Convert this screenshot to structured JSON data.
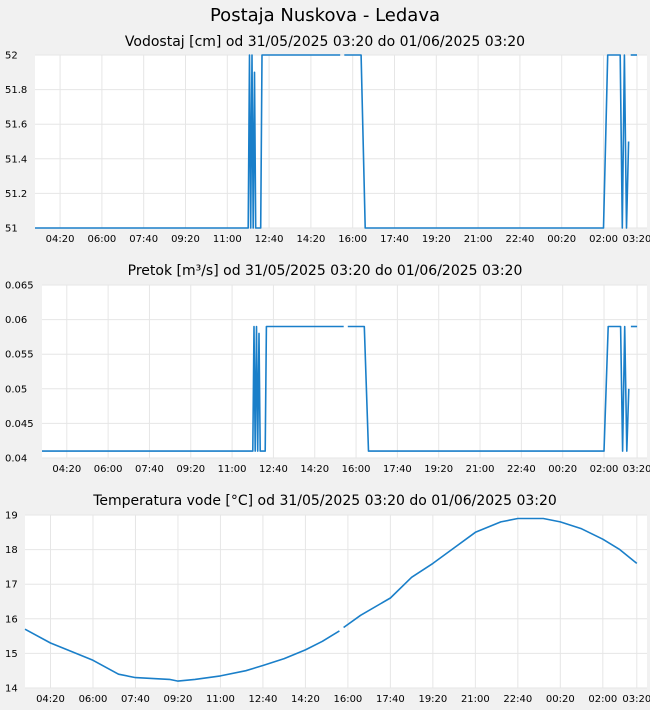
{
  "page_title": "Postaja Nuskova - Ledava",
  "colors": {
    "series": "#1a7fc9",
    "grid": "#e6e6e6",
    "plot_bg": "#ffffff",
    "page_bg": "#f1f1f1"
  },
  "chart_data": [
    {
      "type": "line",
      "title": "Vodostaj [cm] od 31/05/2025 03:20 do 01/06/2025 03:20",
      "xlabel": "",
      "ylabel": "",
      "x_ticks": [
        "04:20",
        "06:00",
        "07:40",
        "09:20",
        "11:00",
        "12:40",
        "14:20",
        "16:00",
        "17:40",
        "19:20",
        "21:00",
        "22:40",
        "00:20",
        "02:00",
        "03:20"
      ],
      "y_ticks": [
        "51",
        "51.2",
        "51.4",
        "51.6",
        "51.8",
        "52"
      ],
      "ylim": [
        51,
        52
      ],
      "grid": true,
      "series": [
        {
          "values": [
            [
              "31/05/2025 03:20",
              51
            ],
            [
              "31/05/2025 11:50",
              51
            ],
            [
              "31/05/2025 11:53",
              52
            ],
            [
              "31/05/2025 11:56",
              51
            ],
            [
              "31/05/2025 11:59",
              52
            ],
            [
              "31/05/2025 12:02",
              51
            ],
            [
              "31/05/2025 12:05",
              51.9
            ],
            [
              "31/05/2025 12:08",
              51
            ],
            [
              "31/05/2025 12:20",
              51
            ],
            [
              "31/05/2025 12:23",
              52
            ],
            [
              "31/05/2025 15:30",
              52
            ],
            null,
            [
              "31/05/2025 15:40",
              52
            ],
            [
              "31/05/2025 16:20",
              52
            ],
            [
              "31/05/2025 16:30",
              51
            ],
            [
              "01/06/2025 02:00",
              51
            ],
            [
              "01/06/2025 02:10",
              52
            ],
            [
              "01/06/2025 02:40",
              52
            ],
            [
              "01/06/2025 02:45",
              51
            ],
            [
              "01/06/2025 02:50",
              52
            ],
            [
              "01/06/2025 02:55",
              51
            ],
            [
              "01/06/2025 03:00",
              51.5
            ],
            null,
            [
              "01/06/2025 03:05",
              52
            ],
            [
              "01/06/2025 03:20",
              52
            ]
          ]
        }
      ]
    },
    {
      "type": "line",
      "title": "Pretok [m³/s] od 31/05/2025 03:20 do 01/06/2025 03:20",
      "xlabel": "",
      "ylabel": "",
      "x_ticks": [
        "04:20",
        "06:00",
        "07:40",
        "09:20",
        "11:00",
        "12:40",
        "14:20",
        "16:00",
        "17:40",
        "19:20",
        "21:00",
        "22:40",
        "00:20",
        "02:00",
        "03:20"
      ],
      "y_ticks": [
        "0.04",
        "0.045",
        "0.05",
        "0.055",
        "0.06",
        "0.065"
      ],
      "ylim": [
        0.04,
        0.065
      ],
      "grid": true,
      "series": [
        {
          "values": [
            [
              "31/05/2025 03:20",
              0.041
            ],
            [
              "31/05/2025 11:50",
              0.041
            ],
            [
              "31/05/2025 11:53",
              0.059
            ],
            [
              "31/05/2025 11:56",
              0.041
            ],
            [
              "31/05/2025 11:59",
              0.059
            ],
            [
              "31/05/2025 12:02",
              0.041
            ],
            [
              "31/05/2025 12:05",
              0.058
            ],
            [
              "31/05/2025 12:08",
              0.041
            ],
            [
              "31/05/2025 12:20",
              0.041
            ],
            [
              "31/05/2025 12:23",
              0.059
            ],
            [
              "31/05/2025 15:30",
              0.059
            ],
            null,
            [
              "31/05/2025 15:40",
              0.059
            ],
            [
              "31/05/2025 16:20",
              0.059
            ],
            [
              "31/05/2025 16:30",
              0.041
            ],
            [
              "01/06/2025 02:00",
              0.041
            ],
            [
              "01/06/2025 02:10",
              0.059
            ],
            [
              "01/06/2025 02:40",
              0.059
            ],
            [
              "01/06/2025 02:45",
              0.041
            ],
            [
              "01/06/2025 02:50",
              0.059
            ],
            [
              "01/06/2025 02:55",
              0.041
            ],
            [
              "01/06/2025 03:00",
              0.05
            ],
            null,
            [
              "01/06/2025 03:05",
              0.059
            ],
            [
              "01/06/2025 03:20",
              0.059
            ]
          ]
        }
      ]
    },
    {
      "type": "line",
      "title": "Temperatura vode [°C] od 31/05/2025 03:20 do 01/06/2025 03:20",
      "xlabel": "",
      "ylabel": "",
      "x_ticks": [
        "04:20",
        "06:00",
        "07:40",
        "09:20",
        "11:00",
        "12:40",
        "14:20",
        "16:00",
        "17:40",
        "19:20",
        "21:00",
        "22:40",
        "00:20",
        "02:00",
        "03:20"
      ],
      "y_ticks": [
        "14",
        "15",
        "16",
        "17",
        "18",
        "19"
      ],
      "ylim": [
        14,
        19
      ],
      "grid": true,
      "series": [
        {
          "values": [
            [
              "31/05/2025 03:20",
              15.7
            ],
            [
              "31/05/2025 04:20",
              15.3
            ],
            [
              "31/05/2025 05:00",
              15.1
            ],
            [
              "31/05/2025 06:00",
              14.8
            ],
            [
              "31/05/2025 07:00",
              14.4
            ],
            [
              "31/05/2025 07:40",
              14.3
            ],
            [
              "31/05/2025 09:00",
              14.25
            ],
            [
              "31/05/2025 09:20",
              14.2
            ],
            [
              "31/05/2025 10:00",
              14.25
            ],
            [
              "31/05/2025 11:00",
              14.35
            ],
            [
              "31/05/2025 12:00",
              14.5
            ],
            [
              "31/05/2025 12:40",
              14.65
            ],
            [
              "31/05/2025 13:30",
              14.85
            ],
            [
              "31/05/2025 14:20",
              15.1
            ],
            [
              "31/05/2025 15:00",
              15.35
            ],
            [
              "31/05/2025 15:40",
              15.65
            ],
            null,
            [
              "31/05/2025 15:50",
              15.75
            ],
            [
              "31/05/2025 16:30",
              16.1
            ],
            [
              "31/05/2025 17:40",
              16.6
            ],
            [
              "31/05/2025 18:30",
              17.2
            ],
            [
              "31/05/2025 19:20",
              17.6
            ],
            [
              "31/05/2025 20:10",
              18.05
            ],
            [
              "31/05/2025 21:00",
              18.5
            ],
            [
              "31/05/2025 22:00",
              18.8
            ],
            [
              "31/05/2025 22:40",
              18.9
            ],
            [
              "31/05/2025 23:40",
              18.9
            ],
            [
              "01/06/2025 00:20",
              18.8
            ],
            [
              "01/06/2025 01:10",
              18.6
            ],
            [
              "01/06/2025 02:00",
              18.3
            ],
            [
              "01/06/2025 02:40",
              18.0
            ],
            [
              "01/06/2025 03:10",
              17.7
            ],
            [
              "01/06/2025 03:20",
              17.6
            ]
          ]
        }
      ]
    }
  ]
}
